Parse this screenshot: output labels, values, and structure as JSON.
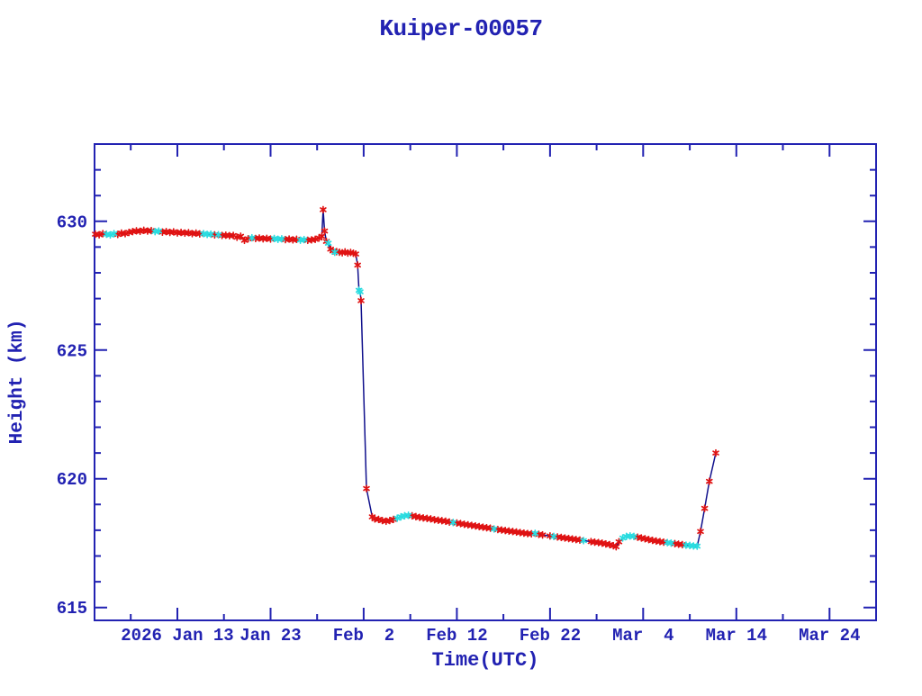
{
  "title": "Kuiper-00057",
  "colors": {
    "background": "#ffffff",
    "axes": "#2222b2",
    "text": "#2222b2",
    "line": "#10108c"
  },
  "chart_data": {
    "type": "line",
    "title": "Kuiper-00057",
    "xlabel": "Time(UTC)",
    "ylabel": "Height (km)",
    "x_unit": "days since 2026 Jan 4 00:00 UTC",
    "xlim_days": [
      0.11,
      84.0
    ],
    "ylim": [
      614.5,
      633.0
    ],
    "grid": false,
    "legend": "none",
    "x_ticks": [
      {
        "label": "2026 Jan 13",
        "day": 9
      },
      {
        "label": "Jan 23",
        "day": 19
      },
      {
        "label": "Feb  2",
        "day": 29
      },
      {
        "label": "Feb 12",
        "day": 39
      },
      {
        "label": "Feb 22",
        "day": 49
      },
      {
        "label": "Mar  4",
        "day": 59
      },
      {
        "label": "Mar 14",
        "day": 69
      },
      {
        "label": "Mar 24",
        "day": 79
      }
    ],
    "x_minor_tick_days": [
      4,
      14,
      24,
      34,
      44,
      54,
      64,
      74
    ],
    "y_ticks": [
      {
        "label": "615",
        "value": 615
      },
      {
        "label": "620",
        "value": 620
      },
      {
        "label": "625",
        "value": 625
      },
      {
        "label": "630",
        "value": 630
      }
    ],
    "y_minor_tick_values": [
      616,
      617,
      618,
      619,
      621,
      622,
      623,
      624,
      626,
      627,
      628,
      629,
      631,
      632
    ],
    "series": [
      {
        "name": "height_km",
        "marker": "asterisk",
        "marker_colors": [
          "#e01212",
          "#2adce0"
        ],
        "point_format": "[days_since_2026_Jan_04, height_km, marker_color_index]",
        "points": [
          [
            0.2,
            629.5,
            0
          ],
          [
            0.6,
            629.48,
            0
          ],
          [
            1.0,
            629.52,
            0
          ],
          [
            1.4,
            629.5,
            1
          ],
          [
            1.8,
            629.47,
            1
          ],
          [
            2.2,
            629.52,
            1
          ],
          [
            2.6,
            629.49,
            0
          ],
          [
            3.0,
            629.54,
            0
          ],
          [
            3.4,
            629.52,
            0
          ],
          [
            3.8,
            629.57,
            0
          ],
          [
            4.2,
            629.6,
            0
          ],
          [
            4.6,
            629.63,
            0
          ],
          [
            5.0,
            629.61,
            0
          ],
          [
            5.4,
            629.65,
            0
          ],
          [
            5.8,
            629.62,
            0
          ],
          [
            6.2,
            629.64,
            0
          ],
          [
            6.6,
            629.6,
            1
          ],
          [
            7.0,
            629.62,
            1
          ],
          [
            7.4,
            629.58,
            0
          ],
          [
            7.8,
            629.6,
            0
          ],
          [
            8.2,
            629.57,
            0
          ],
          [
            8.6,
            629.59,
            0
          ],
          [
            9.0,
            629.55,
            0
          ],
          [
            9.4,
            629.57,
            0
          ],
          [
            9.8,
            629.54,
            0
          ],
          [
            10.2,
            629.56,
            0
          ],
          [
            10.6,
            629.52,
            0
          ],
          [
            11.0,
            629.54,
            0
          ],
          [
            11.4,
            629.51,
            0
          ],
          [
            11.8,
            629.52,
            1
          ],
          [
            12.2,
            629.49,
            1
          ],
          [
            12.6,
            629.5,
            1
          ],
          [
            13.0,
            629.47,
            0
          ],
          [
            13.4,
            629.48,
            1
          ],
          [
            13.8,
            629.45,
            0
          ],
          [
            14.2,
            629.46,
            0
          ],
          [
            14.6,
            629.44,
            0
          ],
          [
            15.0,
            629.45,
            0
          ],
          [
            15.4,
            629.38,
            0
          ],
          [
            15.8,
            629.42,
            0
          ],
          [
            16.2,
            629.26,
            0
          ],
          [
            16.6,
            629.32,
            0
          ],
          [
            17.0,
            629.36,
            1
          ],
          [
            17.4,
            629.33,
            0
          ],
          [
            17.8,
            629.35,
            0
          ],
          [
            18.2,
            629.32,
            0
          ],
          [
            18.6,
            629.34,
            0
          ],
          [
            19.0,
            629.31,
            0
          ],
          [
            19.4,
            629.33,
            1
          ],
          [
            19.8,
            629.3,
            1
          ],
          [
            20.2,
            629.32,
            1
          ],
          [
            20.6,
            629.29,
            0
          ],
          [
            21.0,
            629.31,
            0
          ],
          [
            21.4,
            629.28,
            0
          ],
          [
            21.8,
            629.3,
            0
          ],
          [
            22.2,
            629.27,
            1
          ],
          [
            22.6,
            629.29,
            1
          ],
          [
            23.0,
            629.26,
            0
          ],
          [
            23.4,
            629.28,
            0
          ],
          [
            23.8,
            629.3,
            0
          ],
          [
            24.2,
            629.35,
            0
          ],
          [
            24.5,
            629.42,
            0
          ],
          [
            24.65,
            630.45,
            0
          ],
          [
            24.8,
            629.62,
            0
          ],
          [
            25.0,
            629.22,
            0
          ],
          [
            25.2,
            629.15,
            1
          ],
          [
            25.45,
            628.92,
            0
          ],
          [
            25.7,
            628.85,
            0
          ],
          [
            25.9,
            628.8,
            1
          ],
          [
            26.1,
            628.82,
            0
          ],
          [
            26.4,
            628.8,
            0
          ],
          [
            26.7,
            628.78,
            0
          ],
          [
            27.0,
            628.81,
            0
          ],
          [
            27.3,
            628.77,
            0
          ],
          [
            27.6,
            628.79,
            0
          ],
          [
            27.9,
            628.76,
            0
          ],
          [
            28.15,
            628.73,
            0
          ],
          [
            28.35,
            628.3,
            0
          ],
          [
            28.5,
            627.32,
            1
          ],
          [
            28.62,
            627.26,
            1
          ],
          [
            28.72,
            626.92,
            0
          ],
          [
            29.3,
            619.62,
            0
          ],
          [
            29.92,
            618.52,
            0
          ],
          [
            30.2,
            618.44,
            0
          ],
          [
            30.6,
            618.42,
            0
          ],
          [
            31.0,
            618.38,
            0
          ],
          [
            31.4,
            618.35,
            0
          ],
          [
            31.8,
            618.38,
            0
          ],
          [
            32.2,
            618.42,
            0
          ],
          [
            32.6,
            618.47,
            1
          ],
          [
            33.0,
            618.52,
            1
          ],
          [
            33.4,
            618.56,
            1
          ],
          [
            33.8,
            618.58,
            1
          ],
          [
            34.2,
            618.56,
            0
          ],
          [
            34.6,
            618.53,
            0
          ],
          [
            35.0,
            618.5,
            0
          ],
          [
            35.4,
            618.48,
            0
          ],
          [
            35.8,
            618.46,
            0
          ],
          [
            36.2,
            618.44,
            0
          ],
          [
            36.6,
            618.41,
            0
          ],
          [
            37.0,
            618.39,
            0
          ],
          [
            37.4,
            618.37,
            0
          ],
          [
            37.8,
            618.35,
            0
          ],
          [
            38.2,
            618.32,
            0
          ],
          [
            38.6,
            618.3,
            1
          ],
          [
            39.0,
            618.28,
            0
          ],
          [
            39.4,
            618.26,
            0
          ],
          [
            39.8,
            618.23,
            0
          ],
          [
            40.2,
            618.21,
            0
          ],
          [
            40.6,
            618.19,
            0
          ],
          [
            41.0,
            618.17,
            0
          ],
          [
            41.4,
            618.14,
            0
          ],
          [
            41.8,
            618.12,
            0
          ],
          [
            42.2,
            618.1,
            0
          ],
          [
            42.6,
            618.08,
            0
          ],
          [
            43.0,
            618.05,
            1
          ],
          [
            43.4,
            618.03,
            0
          ],
          [
            43.8,
            618.01,
            0
          ],
          [
            44.2,
            617.99,
            0
          ],
          [
            44.6,
            617.97,
            0
          ],
          [
            45.0,
            617.95,
            0
          ],
          [
            45.4,
            617.93,
            0
          ],
          [
            45.8,
            617.91,
            0
          ],
          [
            46.2,
            617.89,
            0
          ],
          [
            46.6,
            617.87,
            0
          ],
          [
            47.0,
            617.86,
            0
          ],
          [
            47.4,
            617.88,
            1
          ],
          [
            47.8,
            617.84,
            0
          ],
          [
            48.2,
            617.82,
            0
          ],
          [
            49.0,
            617.78,
            0
          ],
          [
            49.4,
            617.76,
            1
          ],
          [
            49.8,
            617.74,
            0
          ],
          [
            50.2,
            617.72,
            0
          ],
          [
            50.6,
            617.7,
            0
          ],
          [
            51.0,
            617.68,
            0
          ],
          [
            51.4,
            617.66,
            0
          ],
          [
            51.8,
            617.64,
            0
          ],
          [
            52.2,
            617.62,
            0
          ],
          [
            52.6,
            617.6,
            1
          ],
          [
            53.4,
            617.56,
            0
          ],
          [
            53.8,
            617.54,
            0
          ],
          [
            54.2,
            617.52,
            0
          ],
          [
            54.6,
            617.5,
            0
          ],
          [
            55.0,
            617.47,
            0
          ],
          [
            55.4,
            617.44,
            0
          ],
          [
            55.8,
            617.4,
            0
          ],
          [
            56.1,
            617.36,
            0
          ],
          [
            56.4,
            617.55,
            0
          ],
          [
            56.8,
            617.7,
            1
          ],
          [
            57.2,
            617.76,
            1
          ],
          [
            57.6,
            617.78,
            1
          ],
          [
            58.0,
            617.76,
            1
          ],
          [
            58.4,
            617.73,
            0
          ],
          [
            58.8,
            617.7,
            0
          ],
          [
            59.2,
            617.67,
            0
          ],
          [
            59.6,
            617.64,
            0
          ],
          [
            60.0,
            617.61,
            0
          ],
          [
            60.4,
            617.58,
            0
          ],
          [
            60.8,
            617.56,
            0
          ],
          [
            61.2,
            617.54,
            0
          ],
          [
            61.6,
            617.52,
            1
          ],
          [
            62.0,
            617.5,
            1
          ],
          [
            62.4,
            617.48,
            0
          ],
          [
            62.8,
            617.46,
            0
          ],
          [
            63.2,
            617.44,
            0
          ],
          [
            63.6,
            617.42,
            1
          ],
          [
            64.0,
            617.41,
            1
          ],
          [
            64.4,
            617.39,
            1
          ],
          [
            64.8,
            617.38,
            1
          ],
          [
            65.15,
            617.95,
            0
          ],
          [
            65.6,
            618.85,
            0
          ],
          [
            66.1,
            619.9,
            0
          ],
          [
            66.8,
            621.0,
            0
          ]
        ]
      }
    ]
  }
}
